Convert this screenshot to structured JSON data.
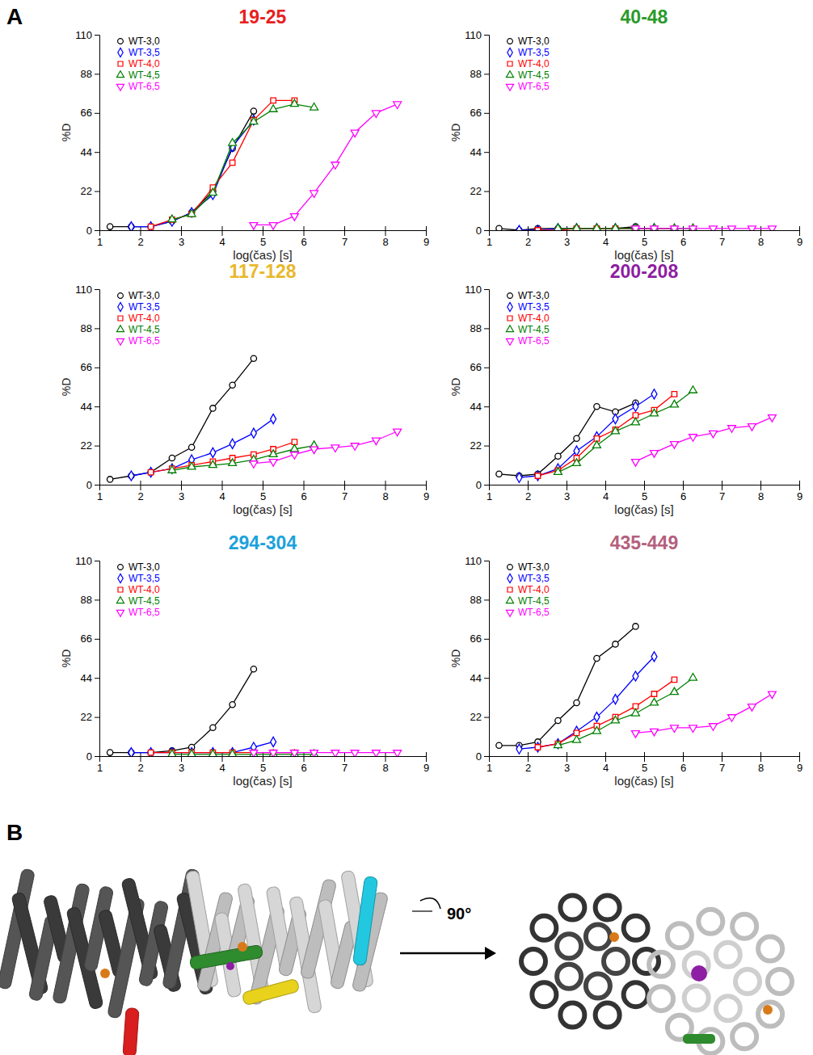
{
  "panel_labels": [
    "A",
    "B"
  ],
  "rotation_label": "90°",
  "chart_data": [
    {
      "type": "line",
      "title": "19-25",
      "color": "#e8201e",
      "x_label": "log(čas) [s]",
      "y_label": "%D",
      "xlim": [
        1,
        9
      ],
      "xticks": [
        1,
        2,
        3,
        4,
        5,
        6,
        7,
        8,
        9
      ],
      "ylim": [
        0,
        110
      ],
      "yticks": [
        0,
        22,
        44,
        66,
        88,
        110
      ],
      "legend": "top-left",
      "series": [
        {
          "name": "WT-3,0",
          "color": "#000000",
          "marker": "circle",
          "line_style": "solid",
          "x": [
            1.26,
            1.78,
            2.26,
            2.78,
            3.26,
            3.78,
            4.26,
            4.78
          ],
          "values": [
            2,
            2,
            2,
            5,
            10,
            22,
            46,
            67
          ]
        },
        {
          "name": "WT-3,5",
          "color": "#0000ff",
          "marker": "diamond",
          "line_style": "solid",
          "x": [
            1.78,
            2.26,
            2.78,
            3.26,
            3.78,
            4.26,
            4.78
          ],
          "values": [
            2,
            2,
            5,
            10,
            20,
            47,
            62
          ]
        },
        {
          "name": "WT-4,0",
          "color": "#ff0000",
          "marker": "square",
          "line_style": "solid",
          "x": [
            2.26,
            2.78,
            3.26,
            3.78,
            4.26,
            4.78,
            5.26,
            5.78
          ],
          "values": [
            2,
            6,
            9,
            24,
            38,
            62,
            73,
            73
          ]
        },
        {
          "name": "WT-4,5",
          "color": "#008000",
          "marker": "triangle-up",
          "line_style": "solid",
          "x": [
            2.78,
            3.26,
            3.78,
            4.26,
            4.78,
            5.26,
            5.78,
            6.26
          ],
          "values": [
            6,
            9,
            21,
            49,
            61,
            68,
            71,
            69
          ]
        },
        {
          "name": "WT-6,5",
          "color": "#ff00ff",
          "marker": "triangle-down",
          "line_style": "solid",
          "x": [
            4.78,
            5.26,
            5.78,
            6.26,
            6.78,
            7.26,
            7.78,
            8.3
          ],
          "values": [
            3,
            3,
            8,
            21,
            37,
            55,
            66,
            71
          ]
        }
      ]
    },
    {
      "type": "line",
      "title": "40-48",
      "color": "#2a9a2a",
      "x_label": "log(čas) [s]",
      "y_label": "%D",
      "xlim": [
        1,
        9
      ],
      "xticks": [
        1,
        2,
        3,
        4,
        5,
        6,
        7,
        8,
        9
      ],
      "ylim": [
        0,
        110
      ],
      "yticks": [
        0,
        22,
        44,
        66,
        88,
        110
      ],
      "legend": "top-left",
      "series": [
        {
          "name": "WT-3,0",
          "color": "#000000",
          "marker": "circle",
          "line_style": "solid",
          "x": [
            1.26,
            1.78,
            2.26,
            2.78,
            3.26,
            3.78,
            4.26,
            4.78
          ],
          "values": [
            1,
            0,
            1,
            1,
            1,
            1,
            1,
            2
          ]
        },
        {
          "name": "WT-3,5",
          "color": "#0000ff",
          "marker": "diamond",
          "line_style": "solid",
          "x": [
            1.78,
            2.26,
            2.78,
            3.26,
            3.78,
            4.26,
            4.78,
            5.26
          ],
          "values": [
            0,
            0,
            1,
            1,
            1,
            1,
            1,
            1
          ]
        },
        {
          "name": "WT-4,0",
          "color": "#ff0000",
          "marker": "square",
          "line_style": "solid",
          "x": [
            2.26,
            2.78,
            3.26,
            3.78,
            4.26,
            4.78,
            5.26,
            5.78
          ],
          "values": [
            0,
            0,
            1,
            1,
            1,
            1,
            1,
            1
          ]
        },
        {
          "name": "WT-4,5",
          "color": "#008000",
          "marker": "triangle-up",
          "line_style": "solid",
          "x": [
            2.78,
            3.26,
            3.78,
            4.26,
            4.78,
            5.26,
            5.78,
            6.26
          ],
          "values": [
            1,
            1,
            1,
            1,
            1,
            1,
            1,
            1
          ]
        },
        {
          "name": "WT-6,5",
          "color": "#ff00ff",
          "marker": "triangle-down",
          "line_style": "solid",
          "x": [
            4.78,
            5.26,
            5.78,
            6.26,
            6.78,
            7.26,
            7.78,
            8.3
          ],
          "values": [
            1,
            1,
            1,
            1,
            1,
            1,
            1,
            1
          ]
        }
      ]
    },
    {
      "type": "line",
      "title": "117-128",
      "color": "#e9b82c",
      "x_label": "log(čas) [s]",
      "y_label": "%D",
      "xlim": [
        1,
        9
      ],
      "xticks": [
        1,
        2,
        3,
        4,
        5,
        6,
        7,
        8,
        9
      ],
      "ylim": [
        0,
        110
      ],
      "yticks": [
        0,
        22,
        44,
        66,
        88,
        110
      ],
      "legend": "top-left",
      "series": [
        {
          "name": "WT-3,0",
          "color": "#000000",
          "marker": "circle",
          "line_style": "solid",
          "x": [
            1.26,
            1.78,
            2.26,
            2.78,
            3.26,
            3.78,
            4.26,
            4.78
          ],
          "values": [
            3,
            5,
            7,
            15,
            21,
            43,
            56,
            71
          ]
        },
        {
          "name": "WT-3,5",
          "color": "#0000ff",
          "marker": "diamond",
          "line_style": "solid",
          "x": [
            1.78,
            2.26,
            2.78,
            3.26,
            3.78,
            4.26,
            4.78,
            5.26
          ],
          "values": [
            5,
            7,
            9,
            14,
            18,
            23,
            29,
            37
          ]
        },
        {
          "name": "WT-4,0",
          "color": "#ff0000",
          "marker": "square",
          "line_style": "solid",
          "x": [
            2.26,
            2.78,
            3.26,
            3.78,
            4.26,
            4.78,
            5.26,
            5.78
          ],
          "values": [
            7,
            9,
            11,
            13,
            15,
            17,
            20,
            24
          ]
        },
        {
          "name": "WT-4,5",
          "color": "#008000",
          "marker": "triangle-up",
          "line_style": "solid",
          "x": [
            2.78,
            3.26,
            3.78,
            4.26,
            4.78,
            5.26,
            5.78,
            6.26
          ],
          "values": [
            8,
            10,
            11,
            12,
            14,
            17,
            20,
            22
          ]
        },
        {
          "name": "WT-6,5",
          "color": "#ff00ff",
          "marker": "triangle-down",
          "line_style": "solid",
          "x": [
            4.78,
            5.26,
            5.78,
            6.26,
            6.78,
            7.26,
            7.78,
            8.3
          ],
          "values": [
            12,
            13,
            17,
            20,
            21,
            22,
            25,
            30
          ]
        }
      ]
    },
    {
      "type": "line",
      "title": "200-208",
      "color": "#8e1ea3",
      "x_label": "log(čas) [s]",
      "y_label": "%D",
      "xlim": [
        1,
        9
      ],
      "xticks": [
        1,
        2,
        3,
        4,
        5,
        6,
        7,
        8,
        9
      ],
      "ylim": [
        0,
        110
      ],
      "yticks": [
        0,
        22,
        44,
        66,
        88,
        110
      ],
      "legend": "top-left",
      "series": [
        {
          "name": "WT-3,0",
          "color": "#000000",
          "marker": "circle",
          "line_style": "solid",
          "x": [
            1.26,
            1.78,
            2.26,
            2.78,
            3.26,
            3.78,
            4.26,
            4.78
          ],
          "values": [
            6,
            5,
            6,
            16,
            26,
            44,
            41,
            46
          ]
        },
        {
          "name": "WT-3,5",
          "color": "#0000ff",
          "marker": "diamond",
          "line_style": "solid",
          "x": [
            1.78,
            2.26,
            2.78,
            3.26,
            3.78,
            4.26,
            4.78,
            5.26
          ],
          "values": [
            4,
            5,
            9,
            19,
            27,
            37,
            44,
            51
          ]
        },
        {
          "name": "WT-4,0",
          "color": "#ff0000",
          "marker": "square",
          "line_style": "solid",
          "x": [
            2.26,
            2.78,
            3.26,
            3.78,
            4.26,
            4.78,
            5.26,
            5.78
          ],
          "values": [
            5,
            8,
            15,
            26,
            31,
            39,
            42,
            51
          ]
        },
        {
          "name": "WT-4,5",
          "color": "#008000",
          "marker": "triangle-up",
          "line_style": "solid",
          "x": [
            2.78,
            3.26,
            3.78,
            4.26,
            4.78,
            5.26,
            5.78,
            6.26
          ],
          "values": [
            7,
            12,
            22,
            30,
            35,
            40,
            45,
            53
          ]
        },
        {
          "name": "WT-6,5",
          "color": "#ff00ff",
          "marker": "triangle-down",
          "line_style": "solid",
          "x": [
            4.78,
            5.26,
            5.78,
            6.26,
            6.78,
            7.26,
            7.78,
            8.3
          ],
          "values": [
            13,
            18,
            23,
            27,
            29,
            32,
            33,
            38
          ]
        }
      ]
    },
    {
      "type": "line",
      "title": "294-304",
      "color": "#1ca2dc",
      "x_label": "log(čas) [s]",
      "y_label": "%D",
      "xlim": [
        1,
        9
      ],
      "xticks": [
        1,
        2,
        3,
        4,
        5,
        6,
        7,
        8,
        9
      ],
      "ylim": [
        0,
        110
      ],
      "yticks": [
        0,
        22,
        44,
        66,
        88,
        110
      ],
      "legend": "top-left",
      "series": [
        {
          "name": "WT-3,0",
          "color": "#000000",
          "marker": "circle",
          "line_style": "solid",
          "x": [
            1.26,
            1.78,
            2.26,
            2.78,
            3.26,
            3.78,
            4.26,
            4.78
          ],
          "values": [
            2,
            2,
            2,
            3,
            5,
            16,
            29,
            49
          ]
        },
        {
          "name": "WT-3,5",
          "color": "#0000ff",
          "marker": "diamond",
          "line_style": "solid",
          "x": [
            1.78,
            2.26,
            2.78,
            3.26,
            3.78,
            4.26,
            4.78,
            5.26
          ],
          "values": [
            2,
            2,
            2,
            2,
            2,
            2,
            5,
            8
          ]
        },
        {
          "name": "WT-4,0",
          "color": "#ff0000",
          "marker": "square",
          "line_style": "solid",
          "x": [
            2.26,
            2.78,
            3.26,
            3.78,
            4.26,
            4.78,
            5.26,
            5.78
          ],
          "values": [
            2,
            2,
            2,
            2,
            2,
            2,
            2,
            2
          ]
        },
        {
          "name": "WT-4,5",
          "color": "#008000",
          "marker": "triangle-up",
          "line_style": "solid",
          "x": [
            2.78,
            3.26,
            3.78,
            4.26,
            4.78,
            5.26,
            5.78,
            6.26
          ],
          "values": [
            1,
            1,
            1,
            1,
            1,
            1,
            1,
            1
          ]
        },
        {
          "name": "WT-6,5",
          "color": "#ff00ff",
          "marker": "triangle-down",
          "line_style": "solid",
          "x": [
            4.78,
            5.26,
            5.78,
            6.26,
            6.78,
            7.26,
            7.78,
            8.3
          ],
          "values": [
            2,
            2,
            2,
            2,
            2,
            2,
            2,
            2
          ]
        }
      ]
    },
    {
      "type": "line",
      "title": "435-449",
      "color": "#b5607e",
      "x_label": "log(čas) [s]",
      "y_label": "%D",
      "xlim": [
        1,
        9
      ],
      "xticks": [
        1,
        2,
        3,
        4,
        5,
        6,
        7,
        8,
        9
      ],
      "ylim": [
        0,
        110
      ],
      "yticks": [
        0,
        22,
        44,
        66,
        88,
        110
      ],
      "legend": "top-left",
      "series": [
        {
          "name": "WT-3,0",
          "color": "#000000",
          "marker": "circle",
          "line_style": "solid",
          "x": [
            1.26,
            1.78,
            2.26,
            2.78,
            3.26,
            3.78,
            4.26,
            4.78
          ],
          "values": [
            6,
            6,
            8,
            20,
            30,
            55,
            63,
            73
          ]
        },
        {
          "name": "WT-3,5",
          "color": "#0000ff",
          "marker": "diamond",
          "line_style": "solid",
          "x": [
            1.78,
            2.26,
            2.78,
            3.26,
            3.78,
            4.26,
            4.78,
            5.26
          ],
          "values": [
            4,
            5,
            7,
            14,
            22,
            32,
            45,
            56
          ]
        },
        {
          "name": "WT-4,0",
          "color": "#ff0000",
          "marker": "square",
          "line_style": "solid",
          "x": [
            2.26,
            2.78,
            3.26,
            3.78,
            4.26,
            4.78,
            5.26,
            5.78
          ],
          "values": [
            5,
            7,
            13,
            17,
            22,
            28,
            35,
            43
          ]
        },
        {
          "name": "WT-4,5",
          "color": "#008000",
          "marker": "triangle-up",
          "line_style": "solid",
          "x": [
            2.78,
            3.26,
            3.78,
            4.26,
            4.78,
            5.26,
            5.78,
            6.26
          ],
          "values": [
            6,
            9,
            14,
            20,
            24,
            30,
            36,
            44
          ]
        },
        {
          "name": "WT-6,5",
          "color": "#ff00ff",
          "marker": "triangle-down",
          "line_style": "solid",
          "x": [
            4.78,
            5.26,
            5.78,
            6.26,
            6.78,
            7.26,
            7.78,
            8.3
          ],
          "values": [
            13,
            14,
            16,
            16,
            17,
            22,
            28,
            35
          ]
        }
      ]
    }
  ]
}
